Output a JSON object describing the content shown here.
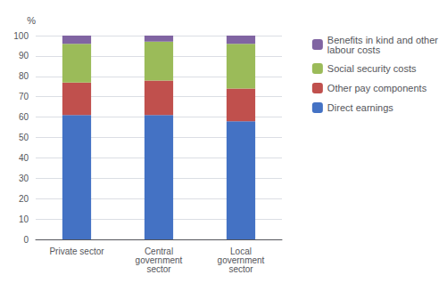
{
  "chart_data": {
    "type": "bar",
    "stacked": true,
    "ylabel": "%",
    "categories": [
      "Private sector",
      "Central\ngovernment\nsector",
      "Local\ngovernment\nsector"
    ],
    "series": [
      {
        "name": "Direct earnings",
        "color": "#4472C4",
        "values": [
          61,
          61,
          58
        ]
      },
      {
        "name": "Other pay components",
        "color": "#C0504D",
        "values": [
          16,
          17,
          16
        ]
      },
      {
        "name": "Social security costs",
        "color": "#9BBB59",
        "values": [
          19,
          19,
          22
        ]
      },
      {
        "name": "Benefits in kind and other\nlabour costs",
        "color": "#8064A2",
        "values": [
          4,
          3,
          4
        ]
      }
    ],
    "ylim": [
      0,
      100
    ],
    "yticks": [
      0,
      10,
      20,
      30,
      40,
      50,
      60,
      70,
      80,
      90,
      100
    ],
    "grid": true,
    "legend": "right"
  }
}
